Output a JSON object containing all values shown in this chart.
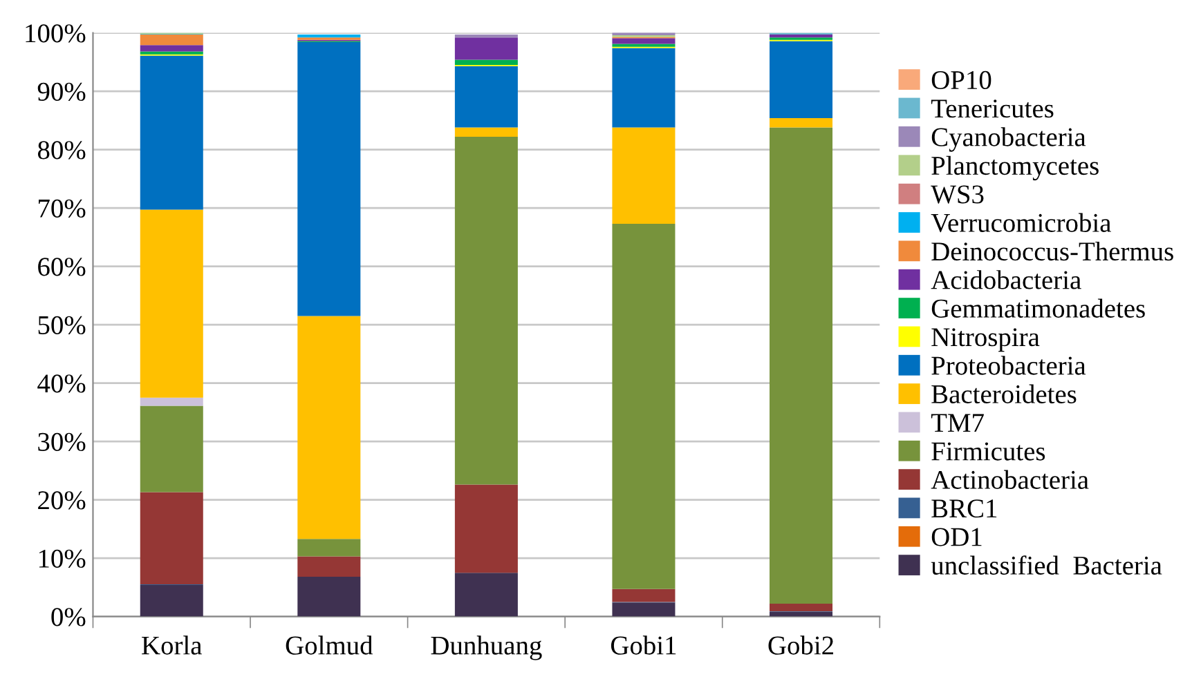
{
  "chart_data": {
    "type": "bar",
    "stacked": true,
    "categories": [
      "Korla",
      "Golmud",
      "Dunhuang",
      "Gobi1",
      "Gobi2"
    ],
    "series": [
      {
        "name": "unclassified  Bacteria",
        "color": "#3f3151",
        "values": [
          5.4,
          6.8,
          7.5,
          2.4,
          0.8
        ]
      },
      {
        "name": "OD1",
        "color": "#e46c0a",
        "values": [
          0,
          0,
          0,
          0,
          0
        ]
      },
      {
        "name": "BRC1",
        "color": "#366092",
        "values": [
          0.1,
          0,
          0,
          0.1,
          0.1
        ]
      },
      {
        "name": "Actinobacteria",
        "color": "#953735",
        "values": [
          15.8,
          3.5,
          15.1,
          2.2,
          1.3
        ]
      },
      {
        "name": "Firmicutes",
        "color": "#77933c",
        "values": [
          14.8,
          3.0,
          59.6,
          62.6,
          81.6
        ]
      },
      {
        "name": "TM7",
        "color": "#ccc1da",
        "values": [
          1.4,
          null,
          null,
          0,
          0
        ]
      },
      {
        "name": "Bacteroidetes",
        "color": "#ffc000",
        "values": [
          32.2,
          38.2,
          1.6,
          16.5,
          1.6
        ]
      },
      {
        "name": "Proteobacteria",
        "color": "#0070c0",
        "values": [
          26.4,
          46.9,
          10.5,
          13.6,
          13.2
        ]
      },
      {
        "name": "Nitrospira",
        "color": "#ffff00",
        "values": [
          0.2,
          0,
          0.2,
          0.2,
          0.2
        ]
      },
      {
        "name": "Gemmatimonadetes",
        "color": "#00b050",
        "values": [
          0.5,
          0.2,
          0.9,
          0.5,
          0.4
        ]
      },
      {
        "name": "Acidobacteria",
        "color": "#7030a0",
        "values": [
          1.1,
          0.2,
          3.8,
          1.0,
          0.5
        ]
      },
      {
        "name": "Deinococcus-Thermus",
        "color": "#f08a3c",
        "values": [
          1.8,
          0.4,
          0,
          0.2,
          0
        ]
      },
      {
        "name": "Verrucomicrobia",
        "color": "#00b0f0",
        "values": [
          0.1,
          0.5,
          0,
          0,
          0
        ]
      },
      {
        "name": "WS3",
        "color": "#d07f80",
        "values": [
          0,
          0,
          0,
          0,
          0
        ]
      },
      {
        "name": "Planctomycetes",
        "color": "#b3cf8a",
        "values": [
          0.2,
          0,
          0,
          0.3,
          0
        ]
      },
      {
        "name": "Cyanobacteria",
        "color": "#9b88b8",
        "values": [
          0,
          0,
          0.5,
          0.5,
          0
        ]
      },
      {
        "name": "Tenericutes",
        "color": "#6bb8cf",
        "values": [
          0,
          0,
          0,
          0,
          0.3
        ]
      },
      {
        "name": "OP10",
        "color": "#f9a97a",
        "values": [
          0,
          0,
          0,
          0,
          0
        ]
      }
    ],
    "ylim": [
      0,
      100
    ],
    "yticks": [
      {
        "value": 0,
        "label": "0%"
      },
      {
        "value": 10,
        "label": "10%"
      },
      {
        "value": 20,
        "label": "20%"
      },
      {
        "value": 30,
        "label": "30%"
      },
      {
        "value": 40,
        "label": "40%"
      },
      {
        "value": 50,
        "label": "50%"
      },
      {
        "value": 60,
        "label": "60%"
      },
      {
        "value": 70,
        "label": "70%"
      },
      {
        "value": 80,
        "label": "80%"
      },
      {
        "value": 90,
        "label": "90%"
      },
      {
        "value": 100,
        "label": "100%"
      }
    ],
    "grid": "y",
    "legend": "right"
  }
}
